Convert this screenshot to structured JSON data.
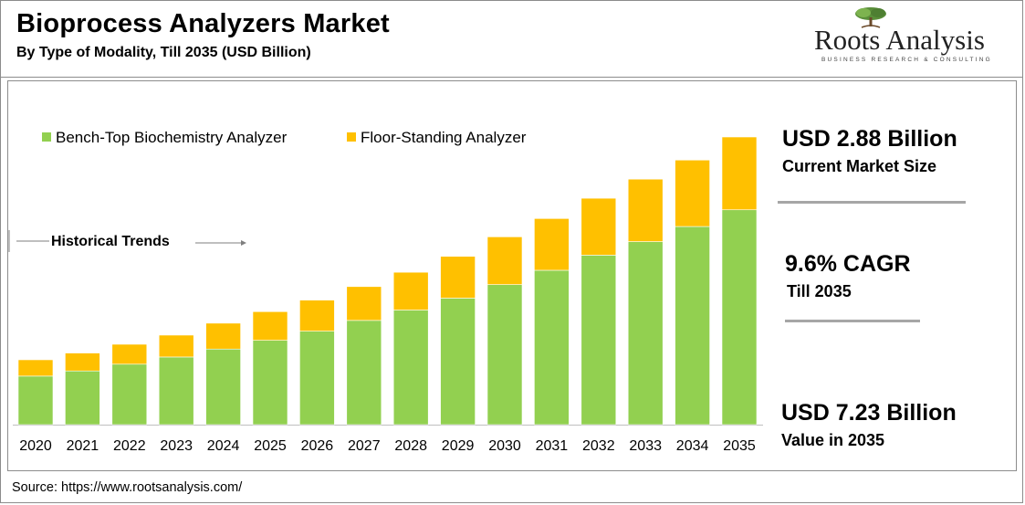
{
  "header": {
    "title": "Bioprocess Analyzers Market",
    "subtitle": "By Type of Modality, Till 2035 (USD Billion)"
  },
  "logo": {
    "name": "Roots Analysis",
    "tagline": "BUSINESS RESEARCH & CONSULTING",
    "icon": "tree-icon"
  },
  "annotations": {
    "historical_trends": "Historical Trends"
  },
  "kpis": {
    "current_value": "USD 2.88 Billion",
    "current_label": "Current Market Size",
    "cagr_value": "9.6% CAGR",
    "cagr_label": "Till 2035",
    "future_value": "USD 7.23 Billion",
    "future_label": "Value in 2035"
  },
  "footer": {
    "source": "Source: https://www.rootsanalysis.com/"
  },
  "colors": {
    "bench_top": "#92d050",
    "floor_standing": "#ffc000",
    "rule": "#a6a6a6",
    "axis": "#bfbfbf"
  },
  "chart_data": {
    "type": "bar",
    "stacked": true,
    "title": "Bioprocess Analyzers Market",
    "subtitle": "By Type of Modality, Till 2035 (USD Billion)",
    "categories": [
      "2020",
      "2021",
      "2022",
      "2023",
      "2024",
      "2025",
      "2026",
      "2027",
      "2028",
      "2029",
      "2030",
      "2031",
      "2032",
      "2033",
      "2034",
      "2035"
    ],
    "series": [
      {
        "name": "Bench-Top Biochemistry Analyzer",
        "values": [
          1.22,
          1.35,
          1.52,
          1.7,
          1.9,
          2.12,
          2.35,
          2.62,
          2.88,
          3.18,
          3.52,
          3.88,
          4.26,
          4.6,
          4.98,
          5.4
        ]
      },
      {
        "name": "Floor-Standing Analyzer",
        "values": [
          0.41,
          0.45,
          0.5,
          0.55,
          0.65,
          0.72,
          0.78,
          0.85,
          0.95,
          1.05,
          1.2,
          1.3,
          1.43,
          1.57,
          1.67,
          1.83
        ]
      }
    ],
    "ylim": [
      0,
      8
    ],
    "legend": "top-left",
    "grid": false
  }
}
